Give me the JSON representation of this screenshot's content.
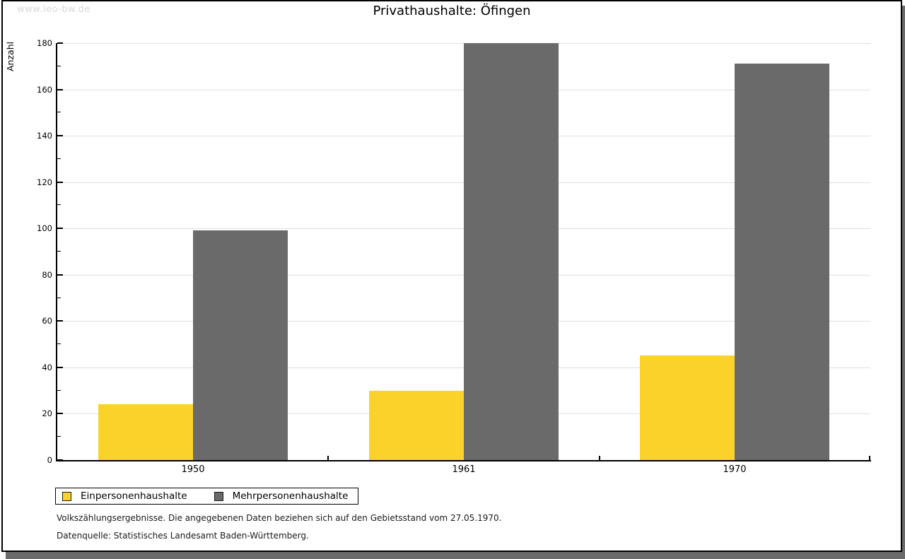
{
  "watermark": "www.leo-bw.de",
  "title": "Privathaushalte: Öfingen",
  "chart_data": {
    "type": "bar",
    "title": "Privathaushalte: Öfingen",
    "categories": [
      "1950",
      "1961",
      "1970"
    ],
    "series": [
      {
        "name": "Einpersonenhaushalte",
        "color": "#FBD22A",
        "values": [
          24,
          30,
          45
        ]
      },
      {
        "name": "Mehrpersonenhaushalte",
        "color": "#6A6A6A",
        "values": [
          99,
          180,
          171
        ]
      }
    ],
    "xlabel": "",
    "ylabel": "Anzahl",
    "ylim": [
      0,
      180
    ],
    "ytick_major_step": 20,
    "ytick_minor_step": 10,
    "grid": true,
    "legend_position": "bottom-left"
  },
  "footnotes": [
    "Volkszählungsergebnisse. Die angegebenen Daten beziehen sich auf den Gebietsstand vom 27.05.1970.",
    "Datenquelle: Statistisches Landesamt Baden-Württemberg."
  ],
  "colors": {
    "grid": "#e0e0e0",
    "axis": "#000000",
    "shadow": "#6b6b6b",
    "watermark": "#d9d9d9",
    "text": "#000000"
  }
}
